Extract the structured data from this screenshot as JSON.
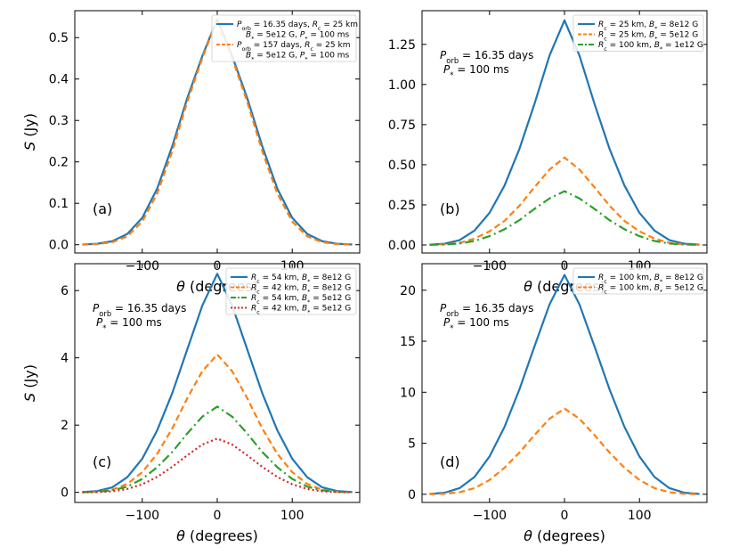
{
  "colors": {
    "blue": "#1f77b4",
    "orange": "#ff7f0e",
    "green": "#2ca02c",
    "red": "#d62728"
  },
  "chart_data": [
    {
      "type": "line",
      "panel_label": "(a)",
      "xlabel": "θ (degrees)",
      "ylabel": "S (Jy)",
      "xlim": [
        -190,
        190
      ],
      "ylim": [
        -0.02,
        0.565
      ],
      "x_ticks": [
        -100,
        0,
        100
      ],
      "x_tick_labels": [
        "−100",
        "0",
        "100"
      ],
      "y_ticks": [
        0,
        0.1,
        0.2,
        0.3,
        0.4,
        0.5
      ],
      "y_tick_labels": [
        "0.0",
        "0.1",
        "0.2",
        "0.3",
        "0.4",
        "0.5"
      ],
      "annotations": [],
      "legend_position": "upper-right",
      "x": [
        -180,
        -160,
        -140,
        -120,
        -100,
        -80,
        -60,
        -40,
        -20,
        0,
        20,
        40,
        60,
        80,
        100,
        120,
        140,
        160,
        180
      ],
      "series": [
        {
          "name_lines": [
            "P_orb = 16.35 days, R_c = 25 km",
            "B_* = 5e12 G, P_* = 100 ms"
          ],
          "color": "blue",
          "dash": "solid",
          "values": [
            0.0005,
            0.0023,
            0.0085,
            0.026,
            0.065,
            0.136,
            0.238,
            0.354,
            0.455,
            0.545,
            0.455,
            0.354,
            0.238,
            0.136,
            0.065,
            0.026,
            0.0085,
            0.0023,
            0.0005
          ]
        },
        {
          "name_lines": [
            "P_orb = 157 days, R_c = 25 km",
            "B_* = 5e12 G, P_* = 100 ms"
          ],
          "color": "orange",
          "dash": "dashed",
          "values": [
            0.0003,
            0.0015,
            0.006,
            0.02,
            0.056,
            0.124,
            0.226,
            0.345,
            0.45,
            0.545,
            0.45,
            0.345,
            0.226,
            0.124,
            0.056,
            0.02,
            0.006,
            0.0015,
            0.0003
          ]
        }
      ]
    },
    {
      "type": "line",
      "panel_label": "(b)",
      "xlabel": "θ (degrees)",
      "ylabel": "",
      "xlim": [
        -190,
        190
      ],
      "ylim": [
        -0.05,
        1.46
      ],
      "x_ticks": [
        -100,
        0,
        100
      ],
      "x_tick_labels": [
        "−100",
        "0",
        "100"
      ],
      "y_ticks": [
        0,
        0.25,
        0.5,
        0.75,
        1.0,
        1.25
      ],
      "y_tick_labels": [
        "0.00",
        "0.25",
        "0.50",
        "0.75",
        "1.00",
        "1.25"
      ],
      "annotations": [
        "P_orb = 16.35 days",
        "P_* = 100 ms"
      ],
      "legend_position": "upper-right",
      "x": [
        -180,
        -160,
        -140,
        -120,
        -100,
        -80,
        -60,
        -40,
        -20,
        0,
        20,
        40,
        60,
        80,
        100,
        120,
        140,
        160,
        180
      ],
      "series": [
        {
          "name_lines": [
            "R_c = 25 km, B_* = 8e12 G"
          ],
          "color": "blue",
          "dash": "solid",
          "values": [
            0.002,
            0.008,
            0.03,
            0.09,
            0.2,
            0.37,
            0.6,
            0.88,
            1.18,
            1.4,
            1.18,
            0.88,
            0.6,
            0.37,
            0.2,
            0.09,
            0.03,
            0.008,
            0.002
          ]
        },
        {
          "name_lines": [
            "R_c = 25 km, B_* = 5e12 G"
          ],
          "color": "orange",
          "dash": "dashed",
          "values": [
            0.001,
            0.004,
            0.013,
            0.04,
            0.085,
            0.15,
            0.245,
            0.36,
            0.47,
            0.545,
            0.47,
            0.36,
            0.245,
            0.15,
            0.085,
            0.04,
            0.013,
            0.004,
            0.001
          ]
        },
        {
          "name_lines": [
            "R_c = 100 km, B_* = 1e12 G"
          ],
          "color": "green",
          "dash": "dashdot",
          "values": [
            0.001,
            0.003,
            0.009,
            0.025,
            0.055,
            0.098,
            0.155,
            0.225,
            0.29,
            0.335,
            0.29,
            0.225,
            0.155,
            0.098,
            0.055,
            0.025,
            0.009,
            0.003,
            0.001
          ]
        }
      ]
    },
    {
      "type": "line",
      "panel_label": "(c)",
      "xlabel": "θ (degrees)",
      "ylabel": "S (Jy)",
      "xlim": [
        -190,
        190
      ],
      "ylim": [
        -0.3,
        6.8
      ],
      "x_ticks": [
        -100,
        0,
        100
      ],
      "x_tick_labels": [
        "−100",
        "0",
        "100"
      ],
      "y_ticks": [
        0,
        2,
        4,
        6
      ],
      "y_tick_labels": [
        "0",
        "2",
        "4",
        "6"
      ],
      "annotations": [
        "P_orb = 16.35 days",
        "P_* = 100 ms"
      ],
      "legend_position": "upper-right",
      "x": [
        -180,
        -160,
        -140,
        -120,
        -100,
        -80,
        -60,
        -40,
        -20,
        0,
        20,
        40,
        60,
        80,
        100,
        120,
        140,
        160,
        180
      ],
      "series": [
        {
          "name_lines": [
            "R_c = 54 km, B_* = 8e12 G"
          ],
          "color": "blue",
          "dash": "solid",
          "values": [
            0.01,
            0.04,
            0.15,
            0.45,
            1.0,
            1.85,
            2.95,
            4.25,
            5.55,
            6.5,
            5.55,
            4.25,
            2.95,
            1.85,
            1.0,
            0.45,
            0.15,
            0.04,
            0.01
          ]
        },
        {
          "name_lines": [
            "R_c = 42 km, B_* = 8e12 G"
          ],
          "color": "orange",
          "dash": "dashed",
          "values": [
            0.005,
            0.02,
            0.08,
            0.25,
            0.6,
            1.15,
            1.9,
            2.8,
            3.6,
            4.1,
            3.6,
            2.8,
            1.9,
            1.15,
            0.6,
            0.25,
            0.08,
            0.02,
            0.005
          ]
        },
        {
          "name_lines": [
            "R_c = 54 km, B_* = 5e12 G"
          ],
          "color": "green",
          "dash": "dashdot",
          "values": [
            0.004,
            0.015,
            0.06,
            0.17,
            0.4,
            0.75,
            1.2,
            1.75,
            2.25,
            2.55,
            2.25,
            1.75,
            1.2,
            0.75,
            0.4,
            0.17,
            0.06,
            0.015,
            0.004
          ]
        },
        {
          "name_lines": [
            "R_c = 42 km, B_* = 5e12 G"
          ],
          "color": "red",
          "dash": "dotted",
          "values": [
            0.002,
            0.008,
            0.03,
            0.1,
            0.24,
            0.46,
            0.76,
            1.1,
            1.42,
            1.6,
            1.42,
            1.1,
            0.76,
            0.46,
            0.24,
            0.1,
            0.03,
            0.008,
            0.002
          ]
        }
      ]
    },
    {
      "type": "line",
      "panel_label": "(d)",
      "xlabel": "θ (degrees)",
      "ylabel": "",
      "xlim": [
        -190,
        190
      ],
      "ylim": [
        -0.8,
        22.6
      ],
      "x_ticks": [
        -100,
        0,
        100
      ],
      "x_tick_labels": [
        "−100",
        "0",
        "100"
      ],
      "y_ticks": [
        0,
        5,
        10,
        15,
        20
      ],
      "y_tick_labels": [
        "0",
        "5",
        "10",
        "15",
        "20"
      ],
      "annotations": [
        "P_orb = 16.35 days",
        "P_* = 100 ms"
      ],
      "legend_position": "upper-right",
      "x": [
        -180,
        -160,
        -140,
        -120,
        -100,
        -80,
        -60,
        -40,
        -20,
        0,
        20,
        40,
        60,
        80,
        100,
        120,
        140,
        160,
        180
      ],
      "series": [
        {
          "name_lines": [
            "R_c = 100 km, B_* = 8e12 G"
          ],
          "color": "blue",
          "dash": "solid",
          "values": [
            0.03,
            0.15,
            0.6,
            1.7,
            3.7,
            6.6,
            10.3,
            14.5,
            18.6,
            21.5,
            18.6,
            14.5,
            10.3,
            6.6,
            3.7,
            1.7,
            0.6,
            0.15,
            0.03
          ]
        },
        {
          "name_lines": [
            "R_c = 100 km, B_* = 5e12 G"
          ],
          "color": "orange",
          "dash": "dashed",
          "values": [
            0.01,
            0.05,
            0.2,
            0.6,
            1.4,
            2.6,
            4.1,
            5.8,
            7.4,
            8.4,
            7.4,
            5.8,
            4.1,
            2.6,
            1.4,
            0.6,
            0.2,
            0.05,
            0.01
          ]
        }
      ]
    }
  ]
}
